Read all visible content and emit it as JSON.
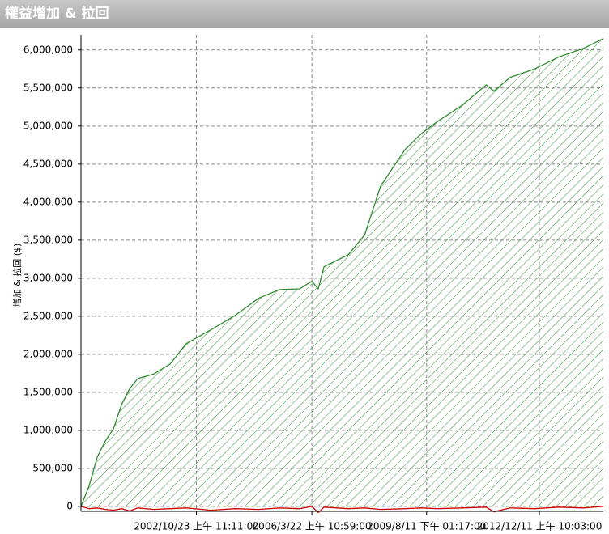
{
  "header": {
    "title": "權益增加 & 拉回"
  },
  "chart_data": {
    "type": "area-line",
    "ylabel": "增加 & 拉回 ($)",
    "x": [
      1999.4,
      1999.64,
      1999.88,
      2000.12,
      2000.36,
      2000.6,
      2000.84,
      2001.08,
      2001.55,
      2002.03,
      2002.51,
      2003.23,
      2003.95,
      2004.66,
      2005.26,
      2005.86,
      2006.22,
      2006.41,
      2006.58,
      2007.3,
      2007.78,
      2008.25,
      2008.97,
      2009.45,
      2009.93,
      2010.65,
      2011.37,
      2011.6,
      2012.08,
      2012.8,
      2013.52,
      2014.24,
      2014.83
    ],
    "series": [
      {
        "color": "#2e8b2e",
        "hatch": true,
        "values": [
          0,
          270000,
          650000,
          860000,
          1020000,
          1340000,
          1550000,
          1680000,
          1740000,
          1870000,
          2140000,
          2320000,
          2510000,
          2740000,
          2850000,
          2860000,
          2960000,
          2860000,
          3150000,
          3310000,
          3570000,
          4210000,
          4690000,
          4900000,
          5060000,
          5270000,
          5540000,
          5460000,
          5640000,
          5750000,
          5910000,
          6020000,
          6150000
        ]
      },
      {
        "color": "#cc0000",
        "hatch": false,
        "values": [
          0,
          -30000,
          -20000,
          -40000,
          -50000,
          -30000,
          -60000,
          -20000,
          -40000,
          -30000,
          -20000,
          -50000,
          -30000,
          -40000,
          -20000,
          -30000,
          0,
          -80000,
          -10000,
          -30000,
          -20000,
          -40000,
          -30000,
          -20000,
          -30000,
          -20000,
          -10000,
          -70000,
          -20000,
          -30000,
          -10000,
          -20000,
          0
        ]
      }
    ],
    "xlim": [
      1999.4,
      2014.83
    ],
    "xticks": [
      {
        "value": 2002.81,
        "label": "2002/10/23 上午 11:11:00"
      },
      {
        "value": 2006.22,
        "label": "2006/3/22 上午 10:59:00"
      },
      {
        "value": 2009.61,
        "label": "2009/8/11 下午 01:17:00"
      },
      {
        "value": 2012.94,
        "label": "2012/12/11 上午 10:03:00"
      }
    ],
    "ylim": [
      -65000,
      6200000
    ],
    "yticks": [
      0,
      {
        "value": 500000,
        "label": "500,000"
      },
      {
        "value": 1000000,
        "label": "1,000,000"
      },
      {
        "value": 1500000,
        "label": "1,500,000"
      },
      {
        "value": 2000000,
        "label": "2,000,000"
      },
      {
        "value": 2500000,
        "label": "2,500,000"
      },
      {
        "value": 3000000,
        "label": "3,000,000"
      },
      {
        "value": 3500000,
        "label": "3,500,000"
      },
      {
        "value": 4000000,
        "label": "4,000,000"
      },
      {
        "value": 4500000,
        "label": "4,500,000"
      },
      {
        "value": 5000000,
        "label": "5,000,000"
      },
      {
        "value": 5500000,
        "label": "5,500,000"
      },
      {
        "value": 6000000,
        "label": "6,000,000"
      }
    ],
    "grid": true
  }
}
